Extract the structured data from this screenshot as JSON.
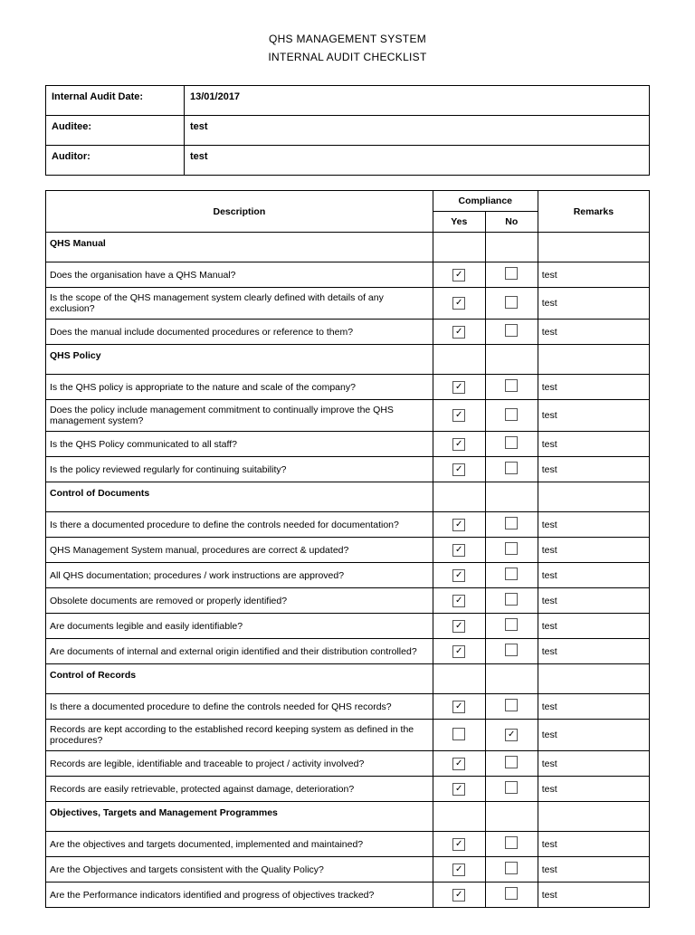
{
  "header": {
    "title1": "QHS MANAGEMENT SYSTEM",
    "title2": "INTERNAL AUDIT CHECKLIST"
  },
  "meta": {
    "dateLabel": "Internal Audit Date:",
    "dateValue": "13/01/2017",
    "auditeeLabel": "Auditee:",
    "auditeeValue": "test",
    "auditorLabel": "Auditor:",
    "auditorValue": "test"
  },
  "columns": {
    "description": "Description",
    "compliance": "Compliance",
    "yes": "Yes",
    "no": "No",
    "remarks": "Remarks"
  },
  "sections": [
    {
      "title": "QHS Manual",
      "items": [
        {
          "desc": "Does the organisation have a QHS Manual?",
          "yes": true,
          "no": false,
          "remarks": "test"
        },
        {
          "desc": "Is the scope of the QHS management system clearly defined with details of any exclusion?",
          "yes": true,
          "no": false,
          "remarks": "test"
        },
        {
          "desc": "Does the manual include documented procedures or reference to them?",
          "yes": true,
          "no": false,
          "remarks": "test"
        }
      ]
    },
    {
      "title": "QHS Policy",
      "items": [
        {
          "desc": "Is the QHS policy is appropriate to the nature and scale of the company?",
          "yes": true,
          "no": false,
          "remarks": "test"
        },
        {
          "desc": "Does the policy include management commitment to continually improve the QHS management system?",
          "yes": true,
          "no": false,
          "remarks": "test"
        },
        {
          "desc": "Is the QHS Policy communicated to all staff?",
          "yes": true,
          "no": false,
          "remarks": "test"
        },
        {
          "desc": "Is the policy reviewed regularly for continuing suitability?",
          "yes": true,
          "no": false,
          "remarks": "test"
        }
      ]
    },
    {
      "title": "Control of Documents",
      "items": [
        {
          "desc": "Is there a documented procedure to define the controls needed for documentation?",
          "yes": true,
          "no": false,
          "remarks": "test"
        },
        {
          "desc": "QHS Management System manual, procedures are correct & updated?",
          "yes": true,
          "no": false,
          "remarks": "test"
        },
        {
          "desc": "All QHS documentation; procedures / work instructions are approved?",
          "yes": true,
          "no": false,
          "remarks": "test"
        },
        {
          "desc": "Obsolete documents are removed or properly identified?",
          "yes": true,
          "no": false,
          "remarks": "test"
        },
        {
          "desc": "Are documents legible and easily identifiable?",
          "yes": true,
          "no": false,
          "remarks": "test"
        },
        {
          "desc": "Are documents of internal and external origin identified and their distribution controlled?",
          "yes": true,
          "no": false,
          "remarks": "test"
        }
      ]
    },
    {
      "title": "Control of Records",
      "items": [
        {
          "desc": "Is there a documented procedure to define the controls needed for QHS records?",
          "yes": true,
          "no": false,
          "remarks": "test"
        },
        {
          "desc": "Records are kept according to the established record keeping system as defined in the procedures?",
          "yes": false,
          "no": true,
          "remarks": "test"
        },
        {
          "desc": "Records are legible, identifiable and traceable to project / activity involved?",
          "yes": true,
          "no": false,
          "remarks": "test"
        },
        {
          "desc": "Records are easily retrievable, protected against damage, deterioration?",
          "yes": true,
          "no": false,
          "remarks": "test"
        }
      ]
    },
    {
      "title": "Objectives, Targets and Management Programmes",
      "items": [
        {
          "desc": "Are the objectives and targets documented, implemented and maintained?",
          "yes": true,
          "no": false,
          "remarks": "test"
        },
        {
          "desc": "Are the Objectives and targets consistent with the Quality Policy?",
          "yes": true,
          "no": false,
          "remarks": "test"
        },
        {
          "desc": "Are the Performance indicators identified and progress of objectives tracked?",
          "yes": true,
          "no": false,
          "remarks": "test"
        }
      ]
    }
  ]
}
